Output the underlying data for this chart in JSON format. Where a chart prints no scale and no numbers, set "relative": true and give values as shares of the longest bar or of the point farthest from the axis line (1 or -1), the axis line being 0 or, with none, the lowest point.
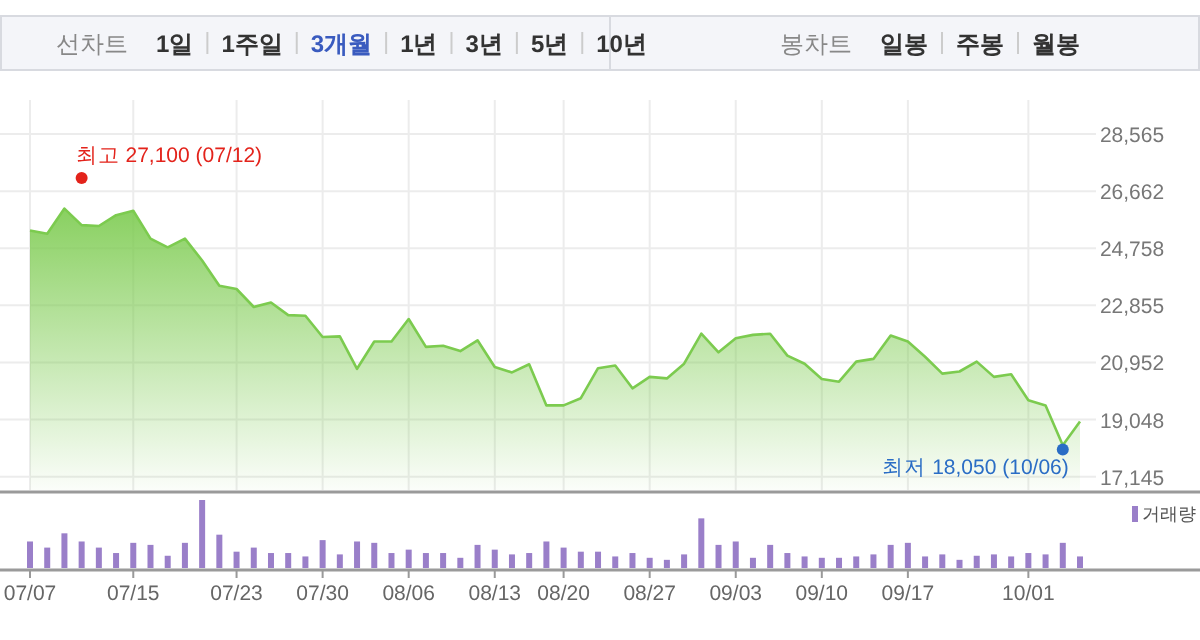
{
  "chart_data": [
    {
      "type": "other",
      "annotations": [
        "선차트",
        "1일",
        "1주일",
        "3개월",
        "1년",
        "3년",
        "5년",
        "10년",
        "봉차트",
        "일봉",
        "주봉",
        "월봉"
      ]
    },
    {
      "type": "area",
      "categories": [
        null,
        null,
        null,
        null,
        null,
        null,
        null,
        null,
        null,
        null,
        null,
        null,
        null,
        null,
        null,
        null,
        null,
        null,
        null,
        null,
        null,
        null,
        null,
        null,
        null,
        null,
        null,
        null,
        null,
        null,
        null,
        null,
        null,
        null,
        null,
        null,
        null,
        null,
        null,
        null,
        null,
        null,
        null,
        null,
        null,
        null,
        null,
        null,
        null,
        null,
        null,
        null,
        null,
        null,
        null,
        null,
        null,
        null,
        null,
        null,
        null,
        null
      ],
      "series": [
        {
          "color": "#7ccb4f",
          "values": [
            25350,
            25240,
            26080,
            25530,
            25500,
            25860,
            26010,
            25080,
            24790,
            25080,
            24350,
            23510,
            23400,
            22800,
            22950,
            22530,
            22510,
            21800,
            21820,
            20740,
            21650,
            21650,
            22400,
            21470,
            21510,
            21330,
            21690,
            20800,
            20620,
            20890,
            19520,
            19520,
            19760,
            20760,
            20850,
            20090,
            20470,
            20420,
            20910,
            21910,
            21290,
            21760,
            21870,
            21910,
            21180,
            20910,
            20400,
            20310,
            20980,
            21070,
            21850,
            21650,
            21140,
            20580,
            20650,
            20980,
            20470,
            20560,
            19690,
            19520,
            18190,
            18980
          ]
        },
        {
          "type": "scatter",
          "color": "#e3231b",
          "values": [
            null,
            null,
            null,
            27100,
            null,
            null,
            null,
            null,
            null,
            null,
            null,
            null,
            null,
            null,
            null,
            null,
            null,
            null,
            null,
            null,
            null,
            null,
            null,
            null,
            null,
            null,
            null,
            null,
            null,
            null,
            null,
            null,
            null,
            null,
            null,
            null,
            null,
            null,
            null,
            null,
            null,
            null,
            null,
            null,
            null,
            null,
            null,
            null,
            null,
            null,
            null,
            null,
            null,
            null,
            null,
            null,
            null,
            null,
            null,
            null,
            null,
            null
          ]
        },
        {
          "type": "scatter",
          "color": "#2a6dc5",
          "values": [
            null,
            null,
            null,
            null,
            null,
            null,
            null,
            null,
            null,
            null,
            null,
            null,
            null,
            null,
            null,
            null,
            null,
            null,
            null,
            null,
            null,
            null,
            null,
            null,
            null,
            null,
            null,
            null,
            null,
            null,
            null,
            null,
            null,
            null,
            null,
            null,
            null,
            null,
            null,
            null,
            null,
            null,
            null,
            null,
            null,
            null,
            null,
            null,
            null,
            null,
            null,
            null,
            null,
            null,
            null,
            null,
            null,
            null,
            null,
            null,
            18050,
            null
          ]
        }
      ],
      "ylim": [
        16700,
        29700
      ],
      "yticks": [
        {
          "value": 17145,
          "label": "17,145"
        },
        {
          "value": 19048,
          "label": "19,048"
        },
        {
          "value": 20952,
          "label": "20,952"
        },
        {
          "value": 22855,
          "label": "22,855"
        },
        {
          "value": 24758,
          "label": "24,758"
        },
        {
          "value": 26662,
          "label": "26,662"
        },
        {
          "value": 28565,
          "label": "28,565"
        }
      ],
      "grid": true,
      "tick_labels": "y",
      "annotations": [
        "최고 27,100 (07/12)",
        "최저 18,050 (10/06)"
      ]
    },
    {
      "type": "bar",
      "relative": true,
      "categories": [
        "07/07",
        null,
        null,
        null,
        null,
        null,
        "07/15",
        null,
        null,
        null,
        null,
        null,
        "07/23",
        null,
        null,
        null,
        null,
        "07/30",
        null,
        null,
        null,
        null,
        "08/06",
        null,
        null,
        null,
        null,
        "08/13",
        null,
        null,
        null,
        "08/20",
        null,
        null,
        null,
        null,
        "08/27",
        null,
        null,
        null,
        null,
        "09/03",
        null,
        null,
        null,
        null,
        "09/10",
        null,
        null,
        null,
        null,
        "09/17",
        null,
        null,
        null,
        null,
        null,
        null,
        "10/01",
        null,
        null,
        null
      ],
      "series": [
        {
          "name": "거래량",
          "color": "#9a7fc9",
          "values": [
            0.39,
            0.3,
            0.51,
            0.39,
            0.3,
            0.22,
            0.37,
            0.34,
            0.18,
            0.37,
            1,
            0.49,
            0.24,
            0.3,
            0.22,
            0.22,
            0.17,
            0.41,
            0.2,
            0.39,
            0.37,
            0.22,
            0.27,
            0.22,
            0.22,
            0.15,
            0.34,
            0.27,
            0.2,
            0.22,
            0.39,
            0.3,
            0.24,
            0.24,
            0.17,
            0.22,
            0.15,
            0.12,
            0.2,
            0.73,
            0.34,
            0.39,
            0.15,
            0.34,
            0.22,
            0.17,
            0.15,
            0.15,
            0.17,
            0.2,
            0.34,
            0.37,
            0.17,
            0.2,
            0.12,
            0.18,
            0.2,
            0.17,
            0.22,
            0.2,
            0.37,
            0.17
          ]
        }
      ],
      "legend": "top right",
      "tick_labels": "x"
    }
  ]
}
